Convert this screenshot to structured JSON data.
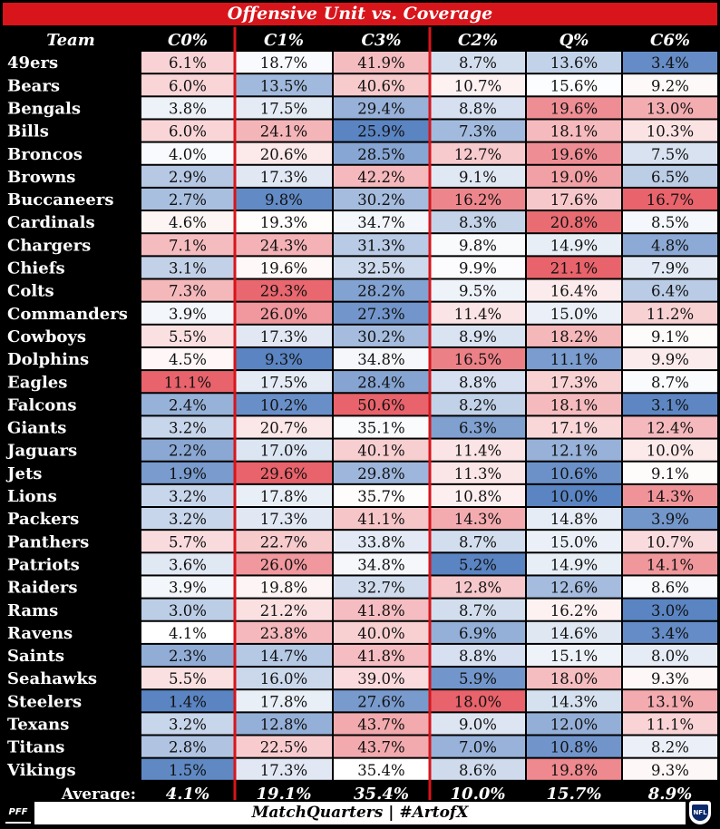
{
  "title": "Offensive Unit vs. Coverage",
  "footer": "MatchQuarters | #ArtofX",
  "logos": {
    "left": "PFF",
    "right": "NFL"
  },
  "colors": {
    "title_bg": "#d7151b",
    "divider": "#d7151b",
    "high": "#e8636b",
    "low": "#5a84c2",
    "mid": "#ffffff"
  },
  "chart_data": {
    "type": "heatmap",
    "title": "Offensive Unit vs. Coverage",
    "row_header": "Team",
    "columns": [
      "C0%",
      "C1%",
      "C3%",
      "C2%",
      "Q%",
      "C6%"
    ],
    "rows": [
      {
        "team": "49ers",
        "values": [
          "6.1%",
          "18.7%",
          "41.9%",
          "8.7%",
          "13.6%",
          "3.4%"
        ]
      },
      {
        "team": "Bears",
        "values": [
          "6.0%",
          "13.5%",
          "40.6%",
          "10.7%",
          "15.6%",
          "9.2%"
        ]
      },
      {
        "team": "Bengals",
        "values": [
          "3.8%",
          "17.5%",
          "29.4%",
          "8.8%",
          "19.6%",
          "13.0%"
        ]
      },
      {
        "team": "Bills",
        "values": [
          "6.0%",
          "24.1%",
          "25.9%",
          "7.3%",
          "18.1%",
          "10.3%"
        ]
      },
      {
        "team": "Broncos",
        "values": [
          "4.0%",
          "20.6%",
          "28.5%",
          "12.7%",
          "19.6%",
          "7.5%"
        ]
      },
      {
        "team": "Browns",
        "values": [
          "2.9%",
          "17.3%",
          "42.2%",
          "9.1%",
          "19.0%",
          "6.5%"
        ]
      },
      {
        "team": "Buccaneers",
        "values": [
          "2.7%",
          "9.8%",
          "30.2%",
          "16.2%",
          "17.6%",
          "16.7%"
        ]
      },
      {
        "team": "Cardinals",
        "values": [
          "4.6%",
          "19.3%",
          "34.7%",
          "8.3%",
          "20.8%",
          "8.5%"
        ]
      },
      {
        "team": "Chargers",
        "values": [
          "7.1%",
          "24.3%",
          "31.3%",
          "9.8%",
          "14.9%",
          "4.8%"
        ]
      },
      {
        "team": "Chiefs",
        "values": [
          "3.1%",
          "19.6%",
          "32.5%",
          "9.9%",
          "21.1%",
          "7.9%"
        ]
      },
      {
        "team": "Colts",
        "values": [
          "7.3%",
          "29.3%",
          "28.2%",
          "9.5%",
          "16.4%",
          "6.4%"
        ]
      },
      {
        "team": "Commanders",
        "values": [
          "3.9%",
          "26.0%",
          "27.3%",
          "11.4%",
          "15.0%",
          "11.2%"
        ]
      },
      {
        "team": "Cowboys",
        "values": [
          "5.5%",
          "17.3%",
          "30.2%",
          "8.9%",
          "18.2%",
          "9.1%"
        ]
      },
      {
        "team": "Dolphins",
        "values": [
          "4.5%",
          "9.3%",
          "34.8%",
          "16.5%",
          "11.1%",
          "9.9%"
        ]
      },
      {
        "team": "Eagles",
        "values": [
          "11.1%",
          "17.5%",
          "28.4%",
          "8.8%",
          "17.3%",
          "8.7%"
        ]
      },
      {
        "team": "Falcons",
        "values": [
          "2.4%",
          "10.2%",
          "50.6%",
          "8.2%",
          "18.1%",
          "3.1%"
        ]
      },
      {
        "team": "Giants",
        "values": [
          "3.2%",
          "20.7%",
          "35.1%",
          "6.3%",
          "17.1%",
          "12.4%"
        ]
      },
      {
        "team": "Jaguars",
        "values": [
          "2.2%",
          "17.0%",
          "40.1%",
          "11.4%",
          "12.1%",
          "10.0%"
        ]
      },
      {
        "team": "Jets",
        "values": [
          "1.9%",
          "29.6%",
          "29.8%",
          "11.3%",
          "10.6%",
          "9.1%"
        ]
      },
      {
        "team": "Lions",
        "values": [
          "3.2%",
          "17.8%",
          "35.7%",
          "10.8%",
          "10.0%",
          "14.3%"
        ]
      },
      {
        "team": "Packers",
        "values": [
          "3.2%",
          "17.3%",
          "41.1%",
          "14.3%",
          "14.8%",
          "3.9%"
        ]
      },
      {
        "team": "Panthers",
        "values": [
          "5.7%",
          "22.7%",
          "33.8%",
          "8.7%",
          "15.0%",
          "10.7%"
        ]
      },
      {
        "team": "Patriots",
        "values": [
          "3.6%",
          "26.0%",
          "34.8%",
          "5.2%",
          "14.9%",
          "14.1%"
        ]
      },
      {
        "team": "Raiders",
        "values": [
          "3.9%",
          "19.8%",
          "32.7%",
          "12.8%",
          "12.6%",
          "8.6%"
        ]
      },
      {
        "team": "Rams",
        "values": [
          "3.0%",
          "21.2%",
          "41.8%",
          "8.7%",
          "16.2%",
          "3.0%"
        ]
      },
      {
        "team": "Ravens",
        "values": [
          "4.1%",
          "23.8%",
          "40.0%",
          "6.9%",
          "14.6%",
          "3.4%"
        ]
      },
      {
        "team": "Saints",
        "values": [
          "2.3%",
          "14.7%",
          "41.8%",
          "8.8%",
          "15.1%",
          "8.0%"
        ]
      },
      {
        "team": "Seahawks",
        "values": [
          "5.5%",
          "16.0%",
          "39.0%",
          "5.9%",
          "18.0%",
          "9.3%"
        ]
      },
      {
        "team": "Steelers",
        "values": [
          "1.4%",
          "17.8%",
          "27.6%",
          "18.0%",
          "14.3%",
          "13.1%"
        ]
      },
      {
        "team": "Texans",
        "values": [
          "3.2%",
          "12.8%",
          "43.7%",
          "9.0%",
          "12.0%",
          "11.1%"
        ]
      },
      {
        "team": "Titans",
        "values": [
          "2.8%",
          "22.5%",
          "43.7%",
          "7.0%",
          "10.8%",
          "8.2%"
        ]
      },
      {
        "team": "Vikings",
        "values": [
          "1.5%",
          "17.3%",
          "35.4%",
          "8.6%",
          "19.8%",
          "9.3%"
        ]
      }
    ],
    "average": {
      "label": "Average:",
      "values": [
        "4.1%",
        "19.1%",
        "35.4%",
        "10.0%",
        "15.7%",
        "8.9%"
      ]
    },
    "color_scale": "per-column diverging: blue = below average, white = average, red = above average"
  }
}
